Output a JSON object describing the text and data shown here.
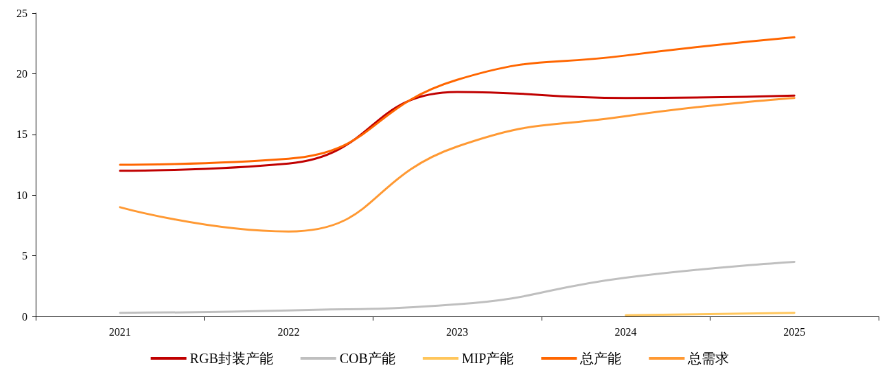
{
  "chart_data": {
    "type": "line",
    "categories": [
      "2021",
      "2022",
      "2023",
      "2024",
      "2025"
    ],
    "series": [
      {
        "name": "RGB封装产能",
        "color": "#c00000",
        "values": [
          12.0,
          12.6,
          18.5,
          18.0,
          18.2
        ]
      },
      {
        "name": "COB产能",
        "color": "#bfbfbf",
        "values": [
          0.3,
          0.5,
          1.0,
          3.2,
          4.5
        ]
      },
      {
        "name": "MIP产能",
        "color": "#ffc65c",
        "values": [
          null,
          null,
          null,
          0.1,
          0.3
        ]
      },
      {
        "name": "总产能",
        "color": "#ff6600",
        "values": [
          12.5,
          13.0,
          19.5,
          21.5,
          23.0
        ]
      },
      {
        "name": "总需求",
        "color": "#ff9933",
        "values": [
          9.0,
          7.0,
          14.0,
          16.5,
          18.0
        ]
      }
    ],
    "ylim": [
      0,
      25
    ],
    "yticks": [
      0,
      5,
      10,
      15,
      20,
      25
    ],
    "grid": false,
    "legend": "bottom",
    "marker": "none",
    "line_style": "solid"
  }
}
